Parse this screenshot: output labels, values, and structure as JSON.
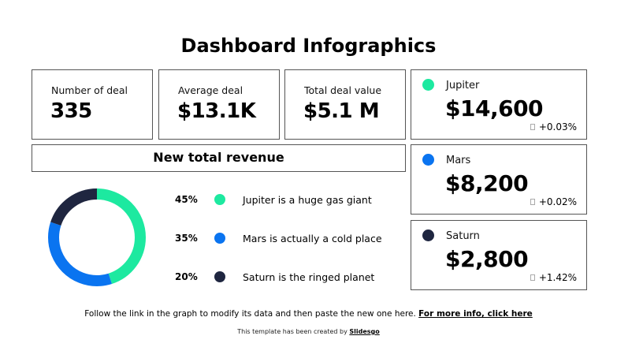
{
  "header": {
    "title": "Dashboard Infographics"
  },
  "kpis": [
    {
      "label": "Number of deal",
      "value": "335"
    },
    {
      "label": "Average deal",
      "value": "$13.1K"
    },
    {
      "label": "Total deal value",
      "value": "$5.1 M"
    }
  ],
  "revenue_section": {
    "title": "New total revenue"
  },
  "planets": [
    {
      "name": "Jupiter",
      "value": "$14,600",
      "change": "+0.03%",
      "color": "#1de9a0"
    },
    {
      "name": "Mars",
      "value": "$8,200",
      "change": "+0.02%",
      "color": "#0a74f0"
    },
    {
      "name": "Saturn",
      "value": "$2,800",
      "change": "+1.42%",
      "color": "#1f2640"
    }
  ],
  "legend": [
    {
      "percent": "45%",
      "text": "Jupiter is a huge gas giant",
      "color": "#1de9a0"
    },
    {
      "percent": "35%",
      "text": "Mars is actually a cold place",
      "color": "#0a74f0"
    },
    {
      "percent": "20%",
      "text": "Saturn is the ringed planet",
      "color": "#1f2640"
    }
  ],
  "footer": {
    "instruction": "Follow the link in the graph to modify its data and then paste the new one here. ",
    "link_text": "For more info, click here",
    "credit_prefix": "This template has been created by ",
    "credit_link": "Slidesgo"
  },
  "chart_data": {
    "type": "pie",
    "title": "New total revenue",
    "categories": [
      "Jupiter",
      "Mars",
      "Saturn"
    ],
    "values": [
      45,
      35,
      20
    ],
    "labels": [
      "Jupiter is a huge gas giant",
      "Mars is actually a cold place",
      "Saturn is the ringed planet"
    ],
    "colors": [
      "#1de9a0",
      "#0a74f0",
      "#1f2640"
    ],
    "donut": true,
    "legend_position": "right"
  }
}
